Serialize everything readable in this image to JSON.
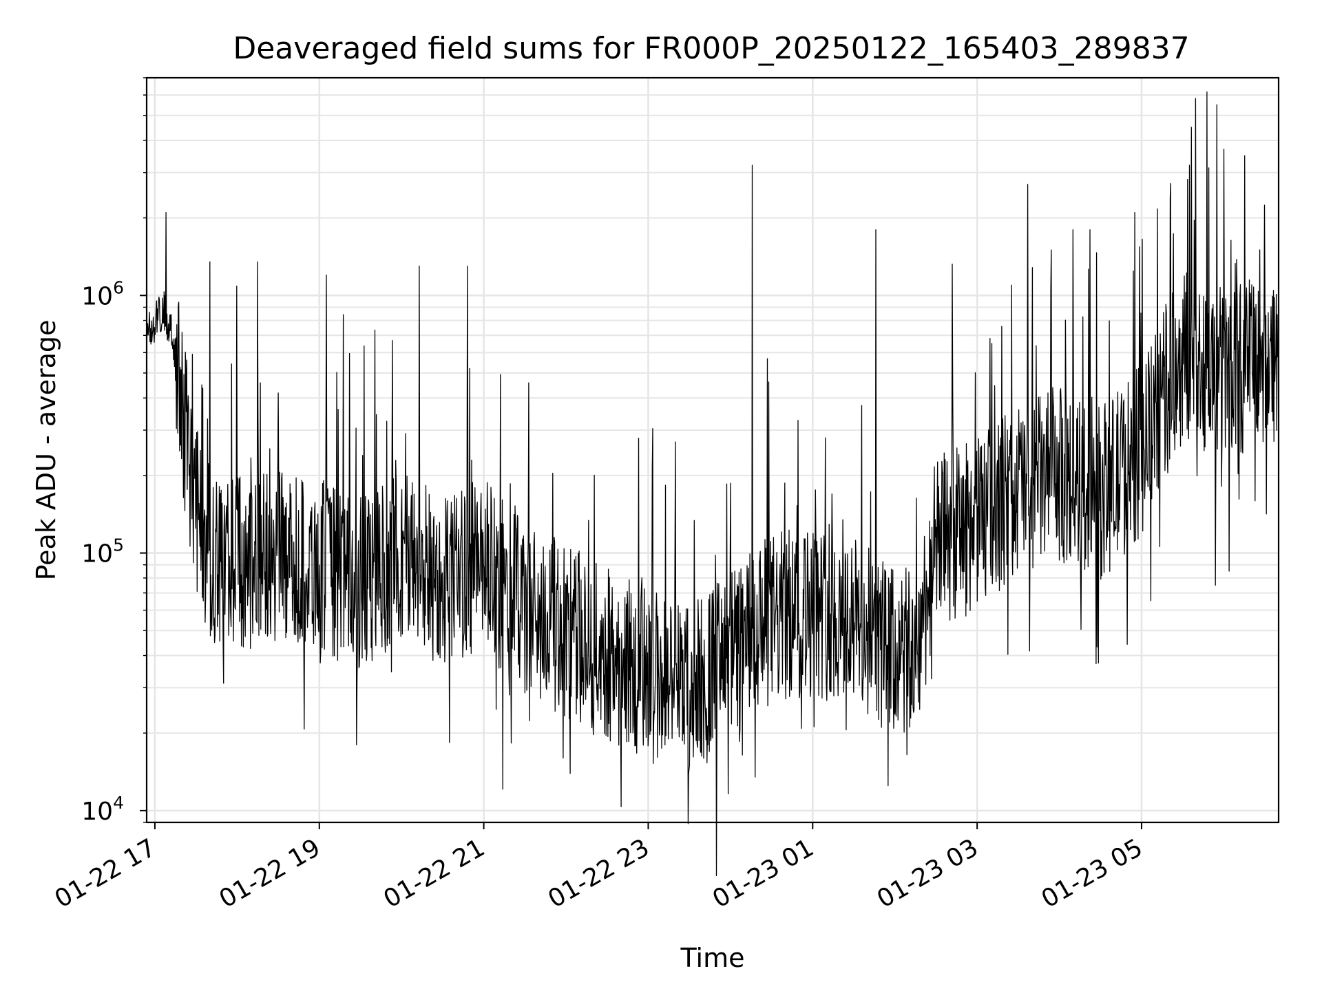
{
  "chart_data": {
    "type": "line",
    "title": "Deaveraged field sums for FR000P_20250122_165403_289837",
    "xlabel": "Time",
    "ylabel": "Peak ADU - average",
    "y_scale": "log",
    "ylim": [
      9000,
      7000000
    ],
    "xlim": [
      "2025-01-22 16:54",
      "2025-01-23 06:40"
    ],
    "grid": true,
    "line_color": "#000000",
    "x_ticks": [
      {
        "t": "2025-01-22 17:00",
        "label": "01-22 17"
      },
      {
        "t": "2025-01-22 19:00",
        "label": "01-22 19"
      },
      {
        "t": "2025-01-22 21:00",
        "label": "01-22 21"
      },
      {
        "t": "2025-01-22 23:00",
        "label": "01-22 23"
      },
      {
        "t": "2025-01-23 01:00",
        "label": "01-23 01"
      },
      {
        "t": "2025-01-23 03:00",
        "label": "01-23 03"
      },
      {
        "t": "2025-01-23 05:00",
        "label": "01-23 05"
      }
    ],
    "y_ticks": [
      {
        "value": 10000,
        "base": "10",
        "exp": "4"
      },
      {
        "value": 100000,
        "base": "10",
        "exp": "5"
      },
      {
        "value": 1000000,
        "base": "10",
        "exp": "6"
      }
    ],
    "series": [
      {
        "x": [
          "2025-01-22 16:54",
          "2025-01-22 17:06",
          "2025-01-22 17:12",
          "2025-01-22 17:18",
          "2025-01-22 17:24",
          "2025-01-22 17:30",
          "2025-01-22 17:40",
          "2025-01-22 18:00",
          "2025-01-22 18:30",
          "2025-01-22 19:00",
          "2025-01-22 19:30",
          "2025-01-22 20:00",
          "2025-01-22 20:30",
          "2025-01-22 21:00",
          "2025-01-22 21:30",
          "2025-01-22 22:00",
          "2025-01-22 22:30",
          "2025-01-22 23:00",
          "2025-01-22 23:30",
          "2025-01-23 00:00",
          "2025-01-23 00:30",
          "2025-01-23 01:00",
          "2025-01-23 01:30",
          "2025-01-23 02:00",
          "2025-01-23 02:15",
          "2025-01-23 02:30",
          "2025-01-23 03:00",
          "2025-01-23 03:30",
          "2025-01-23 04:00",
          "2025-01-23 04:30",
          "2025-01-23 05:00",
          "2025-01-23 05:30",
          "2025-01-23 06:00",
          "2025-01-23 06:40"
        ],
        "values": [
          700000,
          900000,
          700000,
          450000,
          250000,
          150000,
          100000,
          90000,
          95000,
          90000,
          75000,
          100000,
          80000,
          90000,
          60000,
          50000,
          40000,
          35000,
          30000,
          40000,
          55000,
          60000,
          55000,
          40000,
          40000,
          110000,
          130000,
          180000,
          200000,
          170000,
          250000,
          600000,
          500000,
          600000
        ]
      }
    ],
    "spikes": [
      {
        "x": "2025-01-22 17:08",
        "y": 2100000
      },
      {
        "x": "2025-01-22 17:40",
        "y": 1350000
      },
      {
        "x": "2025-01-22 18:15",
        "y": 1350000
      },
      {
        "x": "2025-01-22 19:05",
        "y": 1200000
      },
      {
        "x": "2025-01-22 19:27",
        "y": 18000
      },
      {
        "x": "2025-01-22 20:13",
        "y": 1300000
      },
      {
        "x": "2025-01-22 20:48",
        "y": 1300000
      },
      {
        "x": "2025-01-22 21:58",
        "y": 16000
      },
      {
        "x": "2025-01-22 23:30",
        "y": 15000
      },
      {
        "x": "2025-01-23 00:16",
        "y": 3200000
      },
      {
        "x": "2025-01-23 00:18",
        "y": 13500
      },
      {
        "x": "2025-01-23 01:46",
        "y": 1800000
      },
      {
        "x": "2025-01-23 01:55",
        "y": 12500
      },
      {
        "x": "2025-01-23 03:37",
        "y": 2700000
      },
      {
        "x": "2025-01-23 04:10",
        "y": 1800000
      },
      {
        "x": "2025-01-23 04:55",
        "y": 2100000
      },
      {
        "x": "2025-01-23 05:35",
        "y": 3200000
      },
      {
        "x": "2025-01-23 05:54",
        "y": 75000
      },
      {
        "x": "2025-01-23 05:55",
        "y": 5500000
      },
      {
        "x": "2025-01-23 06:00",
        "y": 3700000
      },
      {
        "x": "2025-01-23 06:04",
        "y": 85000
      }
    ]
  }
}
